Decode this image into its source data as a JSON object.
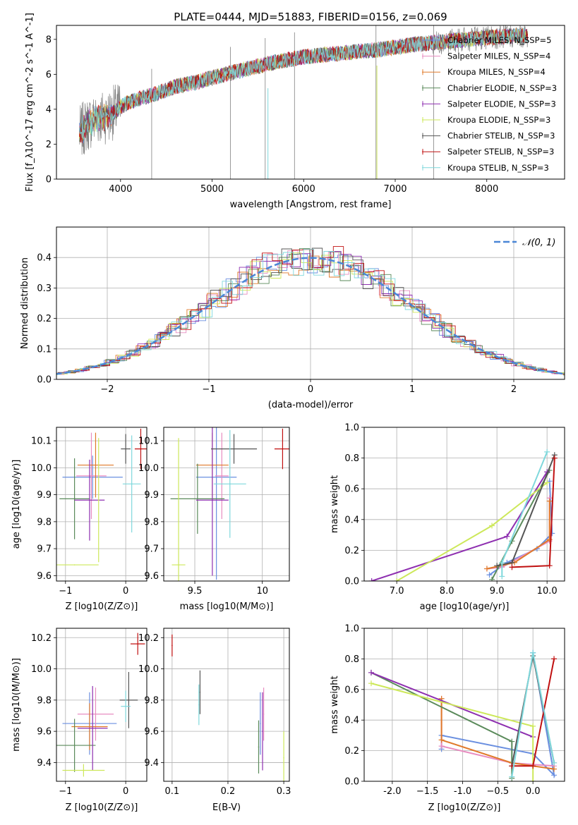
{
  "figure": {
    "title": "PLATE=0444, MJD=51883, FIBERID=0156, z=0.069"
  },
  "colors": {
    "chabrier_miles": "#6a8fe0",
    "salpeter_miles": "#e88cc0",
    "kroupa_miles": "#e07a2a",
    "chabrier_elodie": "#5a8a5a",
    "salpeter_elodie": "#8e2fb0",
    "kroupa_elodie": "#cde85a",
    "chabrier_stelib": "#555555",
    "salpeter_stelib": "#c01010",
    "kroupa_stelib": "#7fd8dc",
    "data": "#808080",
    "normal": "#4a86d6"
  },
  "chart_data": [
    {
      "id": "spectrum",
      "type": "line",
      "xlabel": "wavelength [Angstrom, rest frame]",
      "ylabel": "Flux [f_λ10^-17 erg cm^-2 s^-1 A^-1]",
      "xlim": [
        3300,
        8850
      ],
      "ylim": [
        0,
        8.8
      ],
      "xticks": [
        4000,
        5000,
        6000,
        7000,
        8000
      ],
      "yticks": [
        0,
        2,
        4,
        6,
        8
      ],
      "legend_location": "right",
      "legend": [
        {
          "label": "Chabrier MILES, N_SSP=5",
          "color": "chabrier_miles"
        },
        {
          "label": "Salpeter MILES, N_SSP=4",
          "color": "salpeter_miles"
        },
        {
          "label": "Kroupa MILES, N_SSP=4",
          "color": "kroupa_miles"
        },
        {
          "label": "Chabrier ELODIE, N_SSP=3",
          "color": "chabrier_elodie"
        },
        {
          "label": "Salpeter ELODIE, N_SSP=3",
          "color": "salpeter_elodie"
        },
        {
          "label": "Kroupa ELODIE, N_SSP=3",
          "color": "kroupa_elodie"
        },
        {
          "label": "Chabrier STELIB, N_SSP=3",
          "color": "chabrier_stelib"
        },
        {
          "label": "Salpeter STELIB, N_SSP=3",
          "color": "salpeter_stelib"
        },
        {
          "label": "Kroupa STELIB, N_SSP=3",
          "color": "kroupa_stelib"
        }
      ],
      "continuum": {
        "x": [
          3550,
          3650,
          3750,
          3850,
          3950,
          4050,
          4200,
          4400,
          4600,
          4800,
          5000,
          5300,
          5600,
          6000,
          6400,
          6800,
          7200,
          7600,
          8000,
          8300,
          8450
        ],
        "y": [
          2.6,
          3.2,
          3.5,
          3.6,
          3.9,
          4.3,
          4.6,
          4.9,
          5.3,
          5.5,
          5.8,
          6.2,
          6.6,
          7.0,
          7.2,
          7.4,
          7.7,
          7.9,
          8.1,
          8.2,
          8.2
        ]
      }
    },
    {
      "id": "residuals",
      "type": "line",
      "xlabel": "(data-model)/error",
      "ylabel": "Normed distribution",
      "xlim": [
        -2.5,
        2.5
      ],
      "ylim": [
        0,
        0.5
      ],
      "xticks": [
        -2,
        -1,
        0,
        1,
        2
      ],
      "yticks": [
        0.0,
        0.1,
        0.2,
        0.3,
        0.4
      ],
      "legend_location": "top-right",
      "legend": [
        {
          "label": "𝒩(0, 1)",
          "color": "normal"
        }
      ]
    },
    {
      "id": "age_vs_Z",
      "type": "scatter",
      "xlabel": "Z [log10(Z/Z⊙)]",
      "ylabel": "age  [log10(age/yr)]",
      "xlim": [
        -1.15,
        0.35
      ],
      "ylim": [
        9.58,
        10.15
      ],
      "xticks": [
        -1,
        0
      ],
      "yticks": [
        9.6,
        9.7,
        9.8,
        9.9,
        10.0,
        10.1
      ],
      "points": [
        {
          "model": "chabrier_miles",
          "x": -0.55,
          "y": 9.965,
          "xerr": 0.5,
          "yerr": 0.08
        },
        {
          "model": "salpeter_miles",
          "x": -0.57,
          "y": 9.97,
          "xerr": 0.25,
          "yerr": 0.16
        },
        {
          "model": "kroupa_miles",
          "x": -0.5,
          "y": 10.01,
          "xerr": 0.3,
          "yerr": 0.12
        },
        {
          "model": "chabrier_elodie",
          "x": -0.85,
          "y": 9.885,
          "xerr": 0.25,
          "yerr": 0.15
        },
        {
          "model": "salpeter_elodie",
          "x": -0.6,
          "y": 9.88,
          "xerr": 0.25,
          "yerr": 0.15
        },
        {
          "model": "kroupa_elodie",
          "x": -0.85,
          "y": 9.64,
          "xerr": 0.4,
          "yerr": 0.0
        },
        {
          "model": "chabrier_stelib",
          "x": 0.0,
          "y": 10.07,
          "xerr": 0.08,
          "yerr": 0.055
        },
        {
          "model": "salpeter_stelib",
          "x": 0.25,
          "y": 10.07,
          "xerr": 0.1,
          "yerr": 0.075
        },
        {
          "model": "kroupa_stelib",
          "x": 0.1,
          "y": 9.94,
          "xerr": 0.15,
          "yerr": 0.18
        },
        {
          "model": "kroupa_elodie",
          "x": -0.45,
          "y": 9.88,
          "xerr": 0.0,
          "yerr": 0.23
        }
      ]
    },
    {
      "id": "age_vs_mass",
      "type": "scatter",
      "xlabel": "mass [log10(M/M⊙)]",
      "ylabel": "",
      "xlim": [
        9.27,
        10.2
      ],
      "ylim": [
        9.58,
        10.15
      ],
      "xticks": [
        9.5,
        10.0
      ],
      "yticks": [
        9.6,
        9.7,
        9.8,
        9.9,
        10.0,
        10.1
      ],
      "points": [
        {
          "model": "chabrier_miles",
          "x": 9.66,
          "y": 9.965,
          "xerr": 0.15,
          "yerr": 0.38
        },
        {
          "model": "salpeter_miles",
          "x": 9.7,
          "y": 9.97,
          "xerr": 0.05,
          "yerr": 0.16
        },
        {
          "model": "kroupa_miles",
          "x": 9.63,
          "y": 10.01,
          "xerr": 0.12,
          "yerr": 0.12
        },
        {
          "model": "chabrier_elodie",
          "x": 9.52,
          "y": 9.885,
          "xerr": 0.2,
          "yerr": 0.13
        },
        {
          "model": "salpeter_elodie",
          "x": 9.63,
          "y": 9.88,
          "xerr": 0.12,
          "yerr": 0.28
        },
        {
          "model": "kroupa_elodie",
          "x": 9.38,
          "y": 9.64,
          "xerr": 0.05,
          "yerr": 0.47
        },
        {
          "model": "chabrier_stelib",
          "x": 9.79,
          "y": 10.07,
          "xerr": 0.17,
          "yerr": 0.055
        },
        {
          "model": "salpeter_stelib",
          "x": 10.15,
          "y": 10.07,
          "xerr": 0.06,
          "yerr": 0.075
        },
        {
          "model": "kroupa_stelib",
          "x": 9.76,
          "y": 9.94,
          "xerr": 0.12,
          "yerr": 0.2
        }
      ]
    },
    {
      "id": "weight_vs_age",
      "type": "line",
      "xlabel": "age  [log10(age/yr)]",
      "ylabel": "mass weight",
      "xlim": [
        6.35,
        10.35
      ],
      "ylim": [
        0,
        1.0
      ],
      "xticks": [
        7,
        8,
        9,
        10
      ],
      "yticks": [
        0.0,
        0.2,
        0.4,
        0.6,
        0.8,
        1.0
      ],
      "series": [
        {
          "model": "chabrier_miles",
          "points": [
            [
              8.85,
              0.04
            ],
            [
              9.2,
              0.12
            ],
            [
              9.8,
              0.21
            ],
            [
              10.1,
              0.31
            ],
            [
              10.05,
              0.65
            ]
          ]
        },
        {
          "model": "salpeter_miles",
          "points": [
            [
              8.8,
              0.08
            ],
            [
              9.1,
              0.09
            ],
            [
              10.05,
              0.26
            ],
            [
              10.05,
              0.54
            ]
          ]
        },
        {
          "model": "kroupa_miles",
          "points": [
            [
              8.8,
              0.08
            ],
            [
              9.35,
              0.12
            ],
            [
              10.05,
              0.27
            ],
            [
              10.05,
              0.52
            ]
          ]
        },
        {
          "model": "chabrier_elodie",
          "points": [
            [
              8.9,
              0.01
            ],
            [
              9.3,
              0.26
            ],
            [
              10.05,
              0.72
            ]
          ]
        },
        {
          "model": "salpeter_elodie",
          "points": [
            [
              6.5,
              0.0
            ],
            [
              9.2,
              0.29
            ],
            [
              10.0,
              0.71
            ]
          ]
        },
        {
          "model": "kroupa_elodie",
          "points": [
            [
              7.0,
              0.0
            ],
            [
              8.9,
              0.36
            ],
            [
              10.0,
              0.64
            ]
          ]
        },
        {
          "model": "chabrier_stelib",
          "points": [
            [
              9.0,
              0.1
            ],
            [
              9.3,
              0.12
            ],
            [
              10.15,
              0.82
            ]
          ]
        },
        {
          "model": "salpeter_stelib",
          "points": [
            [
              9.3,
              0.09
            ],
            [
              10.05,
              0.1
            ],
            [
              10.15,
              0.8
            ]
          ]
        },
        {
          "model": "kroupa_stelib",
          "points": [
            [
              9.1,
              0.03
            ],
            [
              9.1,
              0.12
            ],
            [
              10.0,
              0.84
            ]
          ]
        }
      ]
    },
    {
      "id": "mass_vs_Z",
      "type": "scatter",
      "xlabel": "Z [log10(Z/Z⊙)]",
      "ylabel": "mass [log10(M/M⊙)]",
      "xlim": [
        -1.15,
        0.35
      ],
      "ylim": [
        9.28,
        10.26
      ],
      "xticks": [
        -1,
        0
      ],
      "yticks": [
        9.4,
        9.6,
        9.8,
        10.0,
        10.2
      ],
      "points": [
        {
          "model": "chabrier_miles",
          "x": -0.6,
          "y": 9.65,
          "xerr": 0.45,
          "yerr": 0.2
        },
        {
          "model": "salpeter_miles",
          "x": -0.5,
          "y": 9.71,
          "xerr": 0.3,
          "yerr": 0.17
        },
        {
          "model": "kroupa_miles",
          "x": -0.6,
          "y": 9.63,
          "xerr": 0.3,
          "yerr": 0.15
        },
        {
          "model": "chabrier_elodie",
          "x": -0.85,
          "y": 9.51,
          "xerr": 0.35,
          "yerr": 0.17
        },
        {
          "model": "salpeter_elodie",
          "x": -0.55,
          "y": 9.62,
          "xerr": 0.25,
          "yerr": 0.27
        },
        {
          "model": "kroupa_elodie",
          "x": -0.7,
          "y": 9.35,
          "xerr": 0.35,
          "yerr": 0.04
        },
        {
          "model": "chabrier_stelib",
          "x": 0.05,
          "y": 9.8,
          "xerr": 0.15,
          "yerr": 0.18
        },
        {
          "model": "salpeter_stelib",
          "x": 0.2,
          "y": 10.16,
          "xerr": 0.12,
          "yerr": 0.07
        },
        {
          "model": "kroupa_stelib",
          "x": 0.0,
          "y": 9.76,
          "xerr": 0.08,
          "yerr": 0.1
        }
      ]
    },
    {
      "id": "mass_vs_ebv",
      "type": "scatter",
      "xlabel": "E(B-V)",
      "ylabel": "",
      "xlim": [
        0.085,
        0.31
      ],
      "ylim": [
        9.28,
        10.26
      ],
      "xticks": [
        0.1,
        0.2,
        0.3
      ],
      "yticks": [
        9.4,
        9.6,
        9.8,
        10.0,
        10.2
      ],
      "points": [
        {
          "model": "salpeter_stelib",
          "x": 0.1,
          "y": 10.15,
          "xerr": 0.0,
          "yerr": 0.07
        },
        {
          "model": "chabrier_stelib",
          "x": 0.15,
          "y": 9.85,
          "xerr": 0.0,
          "yerr": 0.14
        },
        {
          "model": "kroupa_stelib",
          "x": 0.148,
          "y": 9.77,
          "xerr": 0.0,
          "yerr": 0.13
        },
        {
          "model": "chabrier_elodie",
          "x": 0.255,
          "y": 9.5,
          "xerr": 0.0,
          "yerr": 0.17
        },
        {
          "model": "salpeter_elodie",
          "x": 0.262,
          "y": 9.6,
          "xerr": 0.0,
          "yerr": 0.25
        },
        {
          "model": "salpeter_miles",
          "x": 0.264,
          "y": 9.71,
          "xerr": 0.0,
          "yerr": 0.17
        },
        {
          "model": "chabrier_miles",
          "x": 0.258,
          "y": 9.65,
          "xerr": 0.0,
          "yerr": 0.2
        },
        {
          "model": "kroupa_elodie",
          "x": 0.3,
          "y": 9.43,
          "xerr": 0.0,
          "yerr": 0.17
        }
      ]
    },
    {
      "id": "weight_vs_Z",
      "type": "line",
      "xlabel": "Z [log10(Z/Z⊙)]",
      "ylabel": "mass weight",
      "xlim": [
        -2.4,
        0.45
      ],
      "ylim": [
        0,
        1.0
      ],
      "xticks": [
        -2.0,
        -1.5,
        -1.0,
        -0.5,
        0.0
      ],
      "yticks": [
        0.0,
        0.2,
        0.4,
        0.6,
        0.8,
        1.0
      ],
      "series": [
        {
          "model": "chabrier_miles",
          "points": [
            [
              -1.3,
              0.21
            ],
            [
              -1.3,
              0.3
            ],
            [
              0.0,
              0.18
            ],
            [
              0.3,
              0.04
            ],
            [
              0.0,
              0.84
            ]
          ]
        },
        {
          "model": "salpeter_miles",
          "points": [
            [
              -1.3,
              0.54
            ],
            [
              -1.3,
              0.23
            ],
            [
              -0.3,
              0.12
            ],
            [
              0.3,
              0.1
            ]
          ]
        },
        {
          "model": "kroupa_miles",
          "points": [
            [
              -1.3,
              0.54
            ],
            [
              -1.3,
              0.27
            ],
            [
              -0.3,
              0.12
            ],
            [
              0.3,
              0.08
            ]
          ]
        },
        {
          "model": "chabrier_elodie",
          "points": [
            [
              -2.3,
              0.71
            ],
            [
              -0.3,
              0.26
            ],
            [
              -0.3,
              0.02
            ]
          ]
        },
        {
          "model": "salpeter_elodie",
          "points": [
            [
              -2.3,
              0.71
            ],
            [
              0.0,
              0.29
            ]
          ]
        },
        {
          "model": "kroupa_elodie",
          "points": [
            [
              -2.3,
              0.64
            ],
            [
              0.0,
              0.36
            ],
            [
              0.0,
              0.0
            ]
          ]
        },
        {
          "model": "chabrier_stelib",
          "points": [
            [
              -0.3,
              0.1
            ],
            [
              0.0,
              0.82
            ],
            [
              0.3,
              0.12
            ]
          ]
        },
        {
          "model": "salpeter_stelib",
          "points": [
            [
              -0.3,
              0.1
            ],
            [
              0.0,
              0.1
            ],
            [
              0.3,
              0.8
            ]
          ]
        },
        {
          "model": "kroupa_stelib",
          "points": [
            [
              -0.3,
              0.03
            ],
            [
              0.0,
              0.84
            ],
            [
              0.3,
              0.12
            ]
          ]
        }
      ]
    }
  ]
}
